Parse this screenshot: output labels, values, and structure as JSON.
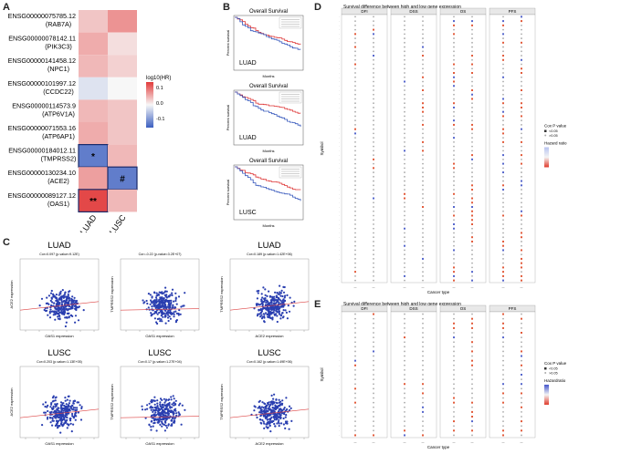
{
  "panels": {
    "A": {
      "letter": "A",
      "genes": [
        {
          "id": "ENSG00000075785.12",
          "symbol": "(RAB7A)"
        },
        {
          "id": "ENSG00000078142.11",
          "symbol": "(PIK3C3)"
        },
        {
          "id": "ENSG00000141458.12",
          "symbol": "(NPC1)"
        },
        {
          "id": "ENSG00000101997.12",
          "symbol": "(CCDC22)"
        },
        {
          "id": "ENSG00000114573.9",
          "symbol": "(ATP6V1A)"
        },
        {
          "id": "ENSG00000071553.16",
          "symbol": "(ATP6AP1)"
        },
        {
          "id": "ENSG00000184012.11",
          "symbol": "(TMPRSS2)"
        },
        {
          "id": "ENSG00000130234.10",
          "symbol": "(ACE2)"
        },
        {
          "id": "ENSG00000089127.12",
          "symbol": "(OAS1)"
        }
      ],
      "columns": [
        "LUAD",
        "LUSC"
      ],
      "heat_values": [
        [
          0.04,
          0.08
        ],
        [
          0.06,
          0.02
        ],
        [
          0.05,
          0.03
        ],
        [
          -0.02,
          0.0
        ],
        [
          0.05,
          0.04
        ],
        [
          0.06,
          0.04
        ],
        [
          -0.12,
          0.05
        ],
        [
          0.07,
          -0.12
        ],
        [
          0.14,
          0.05
        ]
      ],
      "marks": [
        [
          "",
          ""
        ],
        [
          "",
          ""
        ],
        [
          "",
          ""
        ],
        [
          "",
          ""
        ],
        [
          "",
          ""
        ],
        [
          "",
          ""
        ],
        [
          "*",
          ""
        ],
        [
          "",
          "#"
        ],
        [
          "**",
          ""
        ]
      ],
      "legend": {
        "title": "log10(HR)",
        "ticks": [
          "0.1",
          "0.0",
          "-0.1"
        ],
        "colors": {
          "high": "#e23b3b",
          "mid": "#f7f7f7",
          "low": "#3b5fc0"
        }
      }
    },
    "B": {
      "letter": "B",
      "plots": [
        {
          "title": "Overall Survival",
          "label": "LUAD",
          "xlabel": "Months",
          "ylabel": "Percent survival"
        },
        {
          "title": "Overall Survival",
          "label": "LUAD",
          "xlabel": "Months",
          "ylabel": "Percent survival"
        },
        {
          "title": "Overall Survival",
          "label": "LUSC",
          "xlabel": "Months",
          "ylabel": "Percent survival"
        }
      ]
    },
    "C": {
      "letter": "C",
      "plots": [
        {
          "label": "LUAD",
          "cor": "Cor=0.097 (p-value=9.12E)",
          "xlabel": "OAS1 expression",
          "ylabel": "ACE2 expression"
        },
        {
          "label": "",
          "cor": "Cor=-0.22 (p-value=3.2E+07)",
          "xlabel": "OAS1 expression",
          "ylabel": "TMPRSS2 expression"
        },
        {
          "label": "LUAD",
          "cor": "Cor=0.189 (p-value=1.42E+06)",
          "xlabel": "ACE2 expression",
          "ylabel": "TMPRSS2 expression"
        },
        {
          "label": "LUSC",
          "cor": "Cor=0.203 (p-value=1.13E+05)",
          "xlabel": "OAS1 expression",
          "ylabel": "ACE2 expression"
        },
        {
          "label": "LUSC",
          "cor": "Cor=0.17 (p-value=1.27E+04)",
          "xlabel": "OAS1 expression",
          "ylabel": "TMPRSS2 expression"
        },
        {
          "label": "LUSC",
          "cor": "Cor=0.162 (p-value=1.49E+06)",
          "xlabel": "ACE2 expression",
          "ylabel": "TMPRSS2 expression"
        }
      ]
    },
    "D": {
      "letter": "D",
      "title": "Survival difference between high and low gene expression",
      "facets": [
        "DFI",
        "DSS",
        "OS",
        "PFS"
      ],
      "xlabel": "Cancer type",
      "ylabel": "Symbol",
      "legend": {
        "title1": "Cox P value",
        "p1": "<0.05",
        "p2": ">0.05",
        "title2": "Hazard ratio"
      }
    },
    "E": {
      "letter": "E",
      "title": "Survival difference between high and low gene expression",
      "facets": [
        "DFI",
        "DSS",
        "OS",
        "PFS"
      ],
      "xlabel": "Cancer type",
      "ylabel": "Symbol",
      "legend": {
        "title1": "Cox P value",
        "p1": "<0.05",
        "p2": ">0.05",
        "title2": "Hazardratio"
      }
    }
  }
}
